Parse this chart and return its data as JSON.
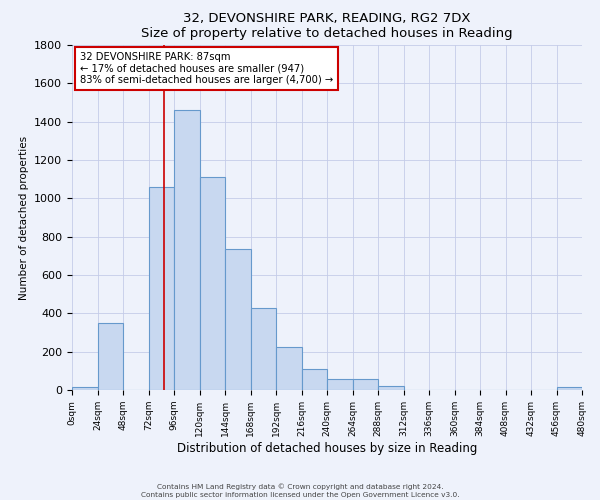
{
  "title": "32, DEVONSHIRE PARK, READING, RG2 7DX",
  "subtitle": "Size of property relative to detached houses in Reading",
  "xlabel": "Distribution of detached houses by size in Reading",
  "ylabel": "Number of detached properties",
  "bar_color": "#c8d8f0",
  "bar_edge_color": "#6699cc",
  "background_color": "#eef2fb",
  "grid_color": "#c5cce8",
  "bin_width": 24,
  "bin_starts": [
    0,
    24,
    48,
    72,
    96,
    120,
    144,
    168,
    192,
    216,
    240,
    264,
    288,
    312,
    336,
    360,
    384,
    408,
    432,
    456
  ],
  "bar_heights": [
    15,
    350,
    0,
    1060,
    1460,
    1110,
    735,
    430,
    225,
    110,
    55,
    55,
    20,
    0,
    0,
    0,
    0,
    0,
    0,
    15
  ],
  "ylim": [
    0,
    1800
  ],
  "yticks": [
    0,
    200,
    400,
    600,
    800,
    1000,
    1200,
    1400,
    1600,
    1800
  ],
  "xtick_labels": [
    "0sqm",
    "24sqm",
    "48sqm",
    "72sqm",
    "96sqm",
    "120sqm",
    "144sqm",
    "168sqm",
    "192sqm",
    "216sqm",
    "240sqm",
    "264sqm",
    "288sqm",
    "312sqm",
    "336sqm",
    "360sqm",
    "384sqm",
    "408sqm",
    "432sqm",
    "456sqm",
    "480sqm"
  ],
  "red_line_x": 87,
  "annotation_text": "32 DEVONSHIRE PARK: 87sqm\n← 17% of detached houses are smaller (947)\n83% of semi-detached houses are larger (4,700) →",
  "annotation_box_color": "#ffffff",
  "annotation_box_edge": "#cc0000",
  "footer_line1": "Contains HM Land Registry data © Crown copyright and database right 2024.",
  "footer_line2": "Contains public sector information licensed under the Open Government Licence v3.0."
}
